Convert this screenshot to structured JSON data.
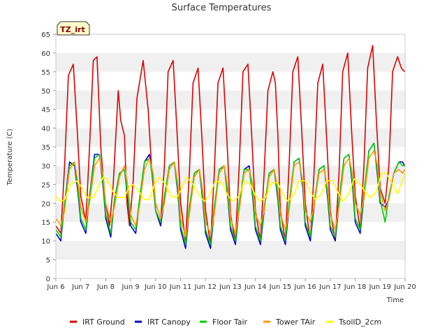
{
  "chart_data": {
    "type": "line",
    "title": "Surface Temperatures",
    "xlabel": "Time",
    "ylabel": "Temperature (C)",
    "badge": "TZ_irt",
    "ylim": [
      0,
      65
    ],
    "yticks": [
      0,
      5,
      10,
      15,
      20,
      25,
      30,
      35,
      40,
      45,
      50,
      55,
      60,
      65
    ],
    "xlim": [
      6,
      20
    ],
    "x_unit": "day of June",
    "xticks": [
      {
        "value": 6,
        "label": "Jun 6"
      },
      {
        "value": 7,
        "label": "Jun 7"
      },
      {
        "value": 8,
        "label": "Jun 8"
      },
      {
        "value": 9,
        "label": "Jun 9"
      },
      {
        "value": 10,
        "label": "Jun 10"
      },
      {
        "value": 11,
        "label": "Jun 11"
      },
      {
        "value": 12,
        "label": "Jun 12"
      },
      {
        "value": 13,
        "label": "Jun 13"
      },
      {
        "value": 14,
        "label": "Jun 14"
      },
      {
        "value": 15,
        "label": "Jun 15"
      },
      {
        "value": 16,
        "label": "Jun 16"
      },
      {
        "value": 17,
        "label": "Jun 17"
      },
      {
        "value": 18,
        "label": "Jun 18"
      },
      {
        "value": 19,
        "label": "Jun 19"
      },
      {
        "value": 20,
        "label": "Jun 20"
      }
    ],
    "grid": "horizontal alternating bands",
    "legend_position": "bottom",
    "series": [
      {
        "name": "IRT Ground",
        "color": "#dd0000",
        "x": [
          6.0,
          6.2,
          6.35,
          6.5,
          6.7,
          6.85,
          7.0,
          7.2,
          7.35,
          7.5,
          7.65,
          7.8,
          7.95,
          8.15,
          8.3,
          8.5,
          8.6,
          8.75,
          8.85,
          8.95,
          9.1,
          9.25,
          9.5,
          9.7,
          9.85,
          10.0,
          10.2,
          10.35,
          10.5,
          10.7,
          10.85,
          11.0,
          11.2,
          11.35,
          11.5,
          11.7,
          11.85,
          12.0,
          12.2,
          12.35,
          12.5,
          12.7,
          12.85,
          13.0,
          13.2,
          13.35,
          13.5,
          13.7,
          13.85,
          14.0,
          14.2,
          14.35,
          14.5,
          14.7,
          14.8,
          14.9,
          15.0,
          15.2,
          15.35,
          15.5,
          15.7,
          15.85,
          16.0,
          16.2,
          16.35,
          16.5,
          16.7,
          16.85,
          17.0,
          17.2,
          17.35,
          17.5,
          17.7,
          17.85,
          18.0,
          18.2,
          18.35,
          18.5,
          18.7,
          18.85,
          19.0,
          19.2,
          19.35,
          19.5,
          19.7,
          19.85,
          19.98
        ],
        "y": [
          14,
          12,
          30,
          54,
          57,
          40,
          22,
          15,
          35,
          58,
          59,
          35,
          22,
          14,
          25,
          50,
          42,
          38,
          20,
          14,
          26,
          48,
          58,
          45,
          28,
          18,
          15,
          30,
          55,
          58,
          40,
          20,
          10,
          28,
          52,
          56,
          38,
          18,
          9,
          28,
          52,
          56,
          38,
          17,
          10,
          30,
          55,
          57,
          38,
          18,
          10,
          28,
          50,
          55,
          52,
          38,
          18,
          10,
          30,
          55,
          59,
          40,
          20,
          10,
          28,
          52,
          57,
          38,
          18,
          10,
          28,
          55,
          60,
          40,
          22,
          13,
          30,
          56,
          62,
          42,
          24,
          20,
          30,
          55,
          59,
          56,
          55
        ]
      },
      {
        "name": "IRT Canopy",
        "color": "#0000cc",
        "x": [
          6.0,
          6.2,
          6.35,
          6.55,
          6.75,
          6.9,
          7.0,
          7.2,
          7.35,
          7.55,
          7.75,
          7.9,
          8.0,
          8.2,
          8.35,
          8.55,
          8.75,
          8.9,
          9.0,
          9.2,
          9.35,
          9.55,
          9.75,
          9.9,
          10.0,
          10.2,
          10.35,
          10.55,
          10.75,
          10.9,
          11.0,
          11.2,
          11.35,
          11.55,
          11.75,
          11.9,
          12.0,
          12.2,
          12.35,
          12.55,
          12.75,
          12.9,
          13.0,
          13.2,
          13.35,
          13.55,
          13.75,
          13.9,
          14.0,
          14.2,
          14.35,
          14.55,
          14.75,
          14.9,
          15.0,
          15.2,
          15.35,
          15.55,
          15.75,
          15.9,
          16.0,
          16.2,
          16.35,
          16.55,
          16.75,
          16.9,
          17.0,
          17.2,
          17.35,
          17.55,
          17.75,
          17.9,
          18.0,
          18.2,
          18.35,
          18.55,
          18.75,
          18.9,
          19.0,
          19.2,
          19.35,
          19.55,
          19.75,
          19.9,
          19.98
        ],
        "y": [
          12,
          10,
          20,
          31,
          30,
          22,
          15,
          12,
          22,
          33,
          33,
          24,
          16,
          11,
          21,
          28,
          29,
          20,
          14,
          12,
          20,
          31,
          33,
          26,
          18,
          14,
          21,
          30,
          31,
          22,
          13,
          8,
          18,
          28,
          29,
          20,
          12,
          8,
          18,
          29,
          30,
          21,
          13,
          9,
          19,
          29,
          30,
          21,
          13,
          9,
          18,
          28,
          29,
          21,
          13,
          9,
          19,
          31,
          32,
          24,
          14,
          10,
          19,
          29,
          30,
          21,
          13,
          10,
          20,
          32,
          33,
          24,
          15,
          12,
          22,
          34,
          36,
          27,
          20,
          19,
          21,
          28,
          31,
          31,
          30
        ]
      },
      {
        "name": "Floor Tair",
        "color": "#00cc00",
        "x": [
          6.0,
          6.2,
          6.35,
          6.55,
          6.75,
          6.9,
          7.0,
          7.2,
          7.35,
          7.55,
          7.75,
          7.9,
          8.0,
          8.2,
          8.35,
          8.55,
          8.75,
          8.9,
          9.0,
          9.2,
          9.35,
          9.55,
          9.75,
          9.9,
          10.0,
          10.2,
          10.35,
          10.55,
          10.75,
          10.9,
          11.0,
          11.2,
          11.35,
          11.55,
          11.75,
          11.9,
          12.0,
          12.2,
          12.35,
          12.55,
          12.75,
          12.9,
          13.0,
          13.2,
          13.35,
          13.55,
          13.75,
          13.9,
          14.0,
          14.2,
          14.35,
          14.55,
          14.75,
          14.9,
          15.0,
          15.2,
          15.35,
          15.55,
          15.75,
          15.9,
          16.0,
          16.2,
          16.35,
          16.55,
          16.75,
          16.9,
          17.0,
          17.2,
          17.35,
          17.55,
          17.75,
          17.9,
          18.0,
          18.2,
          18.35,
          18.55,
          18.75,
          18.9,
          19.0,
          19.2,
          19.35,
          19.55,
          19.75,
          19.9,
          19.98
        ],
        "y": [
          13,
          11,
          20,
          30,
          31,
          23,
          16,
          13,
          22,
          32,
          33,
          25,
          17,
          12,
          21,
          28,
          29,
          21,
          15,
          13,
          21,
          31,
          32,
          26,
          18,
          15,
          22,
          30,
          31,
          23,
          14,
          9,
          19,
          28,
          29,
          21,
          13,
          9,
          19,
          29,
          30,
          22,
          14,
          10,
          20,
          29,
          29,
          22,
          14,
          10,
          19,
          28,
          29,
          22,
          14,
          10,
          20,
          31,
          32,
          25,
          15,
          11,
          20,
          29,
          30,
          22,
          14,
          11,
          21,
          32,
          33,
          25,
          16,
          13,
          23,
          34,
          36,
          28,
          21,
          15,
          22,
          28,
          31,
          30,
          30
        ]
      },
      {
        "name": "Tower TAir",
        "color": "#ff9900",
        "x": [
          6.0,
          6.2,
          6.35,
          6.55,
          6.75,
          6.9,
          7.0,
          7.2,
          7.35,
          7.55,
          7.75,
          7.9,
          8.0,
          8.2,
          8.35,
          8.55,
          8.75,
          8.9,
          9.0,
          9.2,
          9.35,
          9.55,
          9.75,
          9.9,
          10.0,
          10.2,
          10.35,
          10.55,
          10.75,
          10.9,
          11.0,
          11.2,
          11.35,
          11.55,
          11.75,
          11.9,
          12.0,
          12.2,
          12.35,
          12.55,
          12.75,
          12.9,
          13.0,
          13.2,
          13.35,
          13.55,
          13.75,
          13.9,
          14.0,
          14.2,
          14.35,
          14.55,
          14.75,
          14.9,
          15.0,
          15.2,
          15.35,
          15.55,
          15.75,
          15.9,
          16.0,
          16.2,
          16.35,
          16.55,
          16.75,
          16.9,
          17.0,
          17.2,
          17.35,
          17.55,
          17.75,
          17.9,
          18.0,
          18.2,
          18.35,
          18.55,
          18.75,
          18.9,
          19.0,
          19.2,
          19.35,
          19.55,
          19.75,
          19.9,
          19.98
        ],
        "y": [
          16,
          14,
          18,
          29,
          31,
          25,
          19,
          15,
          20,
          30,
          32,
          27,
          20,
          15,
          19,
          27,
          30,
          24,
          17,
          14,
          19,
          29,
          32,
          28,
          20,
          16,
          20,
          29,
          31,
          25,
          16,
          11,
          17,
          27,
          29,
          23,
          15,
          12,
          17,
          28,
          30,
          24,
          16,
          12,
          18,
          28,
          29,
          25,
          17,
          14,
          18,
          27,
          29,
          24,
          17,
          13,
          18,
          30,
          31,
          26,
          18,
          15,
          19,
          28,
          29,
          24,
          17,
          13,
          19,
          30,
          32,
          28,
          20,
          17,
          21,
          32,
          34,
          30,
          23,
          18,
          21,
          28,
          29,
          28,
          29
        ]
      },
      {
        "name": "TsoilD_2cm",
        "color": "#ffff00",
        "x": [
          6.0,
          6.15,
          6.35,
          6.6,
          6.85,
          7.05,
          7.25,
          7.5,
          7.75,
          7.9,
          8.05,
          8.3,
          8.5,
          8.75,
          8.95,
          9.1,
          9.35,
          9.55,
          9.75,
          9.95,
          10.15,
          10.4,
          10.6,
          10.85,
          11.05,
          11.25,
          11.5,
          11.75,
          11.95,
          12.15,
          12.4,
          12.65,
          12.9,
          13.1,
          13.35,
          13.55,
          13.8,
          14.0,
          14.2,
          14.45,
          14.65,
          14.9,
          15.1,
          15.3,
          15.55,
          15.75,
          16.0,
          16.2,
          16.4,
          16.65,
          16.85,
          17.1,
          17.3,
          17.5,
          17.75,
          17.95,
          18.15,
          18.4,
          18.6,
          18.85,
          19.05,
          19.25,
          19.5,
          19.7,
          19.98
        ],
        "y": [
          22,
          20.5,
          21,
          25,
          26,
          24,
          21.5,
          21.5,
          25,
          27,
          26.5,
          23,
          21.5,
          21.5,
          24.5,
          25,
          23,
          21,
          21,
          25,
          27,
          25,
          22,
          21.5,
          24,
          27,
          25,
          22,
          20.5,
          22,
          26,
          25.5,
          22,
          20.5,
          22,
          26,
          25,
          22,
          20.5,
          22,
          25.5,
          25.5,
          22.5,
          20.5,
          22.5,
          26,
          26,
          23,
          21,
          22.5,
          26,
          26,
          23,
          20.5,
          22.5,
          26.5,
          25.5,
          23,
          21.5,
          23,
          28,
          28,
          25,
          22.5,
          28
        ]
      }
    ]
  }
}
